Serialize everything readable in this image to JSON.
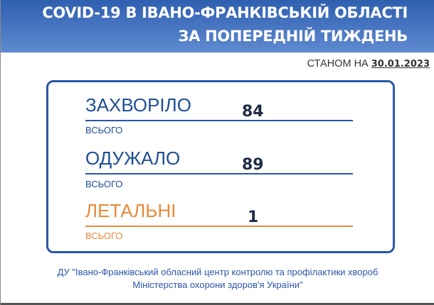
{
  "header": {
    "line1": "COVID-19 В ІВАНО-ФРАНКІВСЬКІЙ ОБЛАСТІ",
    "line2": "ЗА ПОПЕРЕДНІЙ ТИЖДЕНЬ"
  },
  "as_of": {
    "label": "СТАНОМ НА",
    "date": "30.01.2023"
  },
  "stats": [
    {
      "label": "ЗАХВОРІЛО",
      "value": "84",
      "sub": "ВСЬОГО",
      "color": "#1f4e96"
    },
    {
      "label": "ОДУЖАЛО",
      "value": "89",
      "sub": "ВСЬОГО",
      "color": "#1f4e96"
    },
    {
      "label": "ЛЕТАЛЬНІ",
      "value": "1",
      "sub": "ВСЬОГО",
      "color": "#e58a3a"
    }
  ],
  "footer": {
    "line1": "ДУ \"Івано-Франківський обласний центр контролю та профілактики хвороб",
    "line2": "Міністерства охорони здоров'я України\""
  }
}
